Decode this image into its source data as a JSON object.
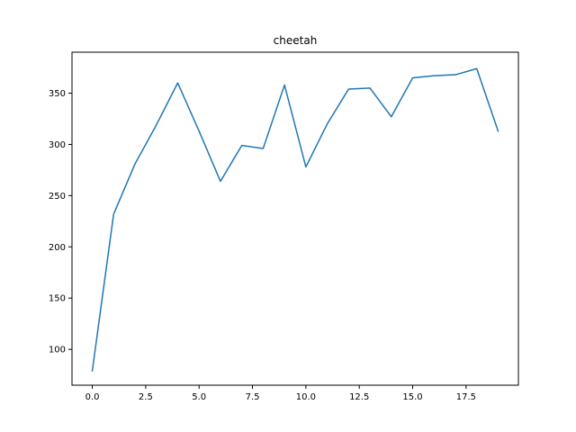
{
  "chart_data": {
    "type": "line",
    "title": "cheetah",
    "xlabel": "",
    "ylabel": "",
    "xlim": [
      -0.95,
      19.95
    ],
    "ylim": [
      65,
      390
    ],
    "x_ticks": [
      0,
      2.5,
      5,
      7.5,
      10,
      12.5,
      15,
      17.5
    ],
    "x_tick_labels": [
      "0.0",
      "2.5",
      "5.0",
      "7.5",
      "10.0",
      "12.5",
      "15.0",
      "17.5"
    ],
    "y_ticks": [
      100,
      150,
      200,
      250,
      300,
      350
    ],
    "y_tick_labels": [
      "100",
      "150",
      "200",
      "250",
      "300",
      "350"
    ],
    "grid": false,
    "legend": false,
    "series": [
      {
        "color": "#1f77b4",
        "x": [
          0,
          1,
          2,
          3,
          4,
          5,
          6,
          7,
          8,
          9,
          10,
          11,
          12,
          13,
          14,
          15,
          16,
          17,
          18,
          19
        ],
        "y": [
          79,
          232,
          281,
          319,
          360,
          313,
          264,
          299,
          296,
          358,
          278,
          320,
          354,
          355,
          327,
          365,
          367,
          368,
          374,
          313
        ]
      }
    ]
  }
}
